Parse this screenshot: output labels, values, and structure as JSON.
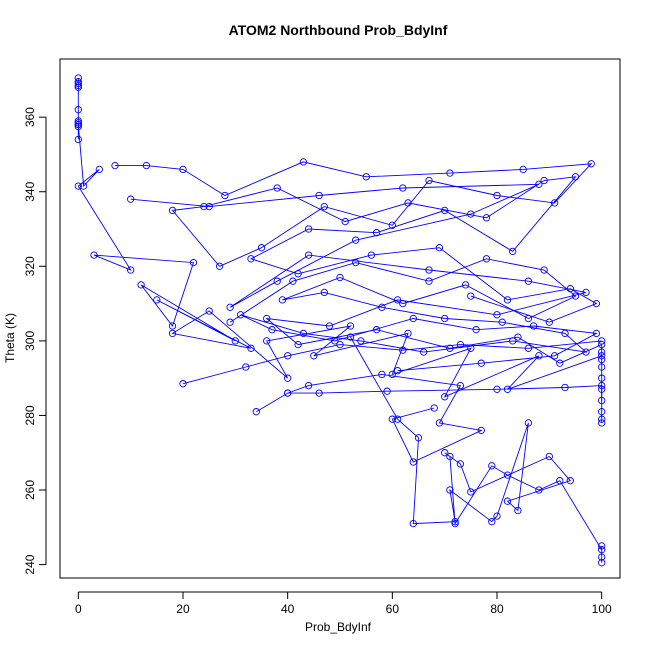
{
  "chart_data": {
    "type": "line",
    "title": "ATOM2 Northbound Prob_BdyInf",
    "xlabel": "Prob_BdyInf",
    "ylabel": "Theta (K)",
    "xlim": [
      -3.5,
      103.5
    ],
    "ylim": [
      236.4,
      375.6
    ],
    "x_ticks": [
      0,
      20,
      40,
      60,
      80,
      100
    ],
    "y_ticks": [
      240,
      260,
      280,
      300,
      320,
      340,
      360
    ],
    "grid": false,
    "legend": "none",
    "marker": "open-circle",
    "color": "#0000ff",
    "series": [
      {
        "x": [
          0,
          0,
          0,
          0,
          0,
          0,
          0,
          0,
          0,
          0,
          0
        ],
        "y": [
          370.5,
          369.5,
          369,
          368.5,
          368,
          362,
          359,
          358.5,
          358,
          357.5,
          354
        ]
      },
      {
        "x": [
          0,
          1,
          4,
          0,
          10,
          3,
          22,
          18,
          12,
          30,
          15,
          33,
          18,
          25,
          40,
          36,
          52,
          45,
          63,
          60,
          75,
          70,
          88,
          82,
          100
        ],
        "y": [
          358,
          341.5,
          346,
          341.5,
          319,
          323,
          321,
          304,
          315,
          300,
          311,
          298,
          302,
          308,
          290,
          300,
          304,
          296,
          302,
          291,
          298,
          285,
          296,
          287,
          296
        ]
      },
      {
        "x": [
          7,
          13,
          20,
          28,
          43,
          55,
          71,
          85,
          98,
          91,
          80,
          67,
          60,
          47,
          35,
          27,
          18,
          24,
          38,
          51,
          63,
          78,
          89,
          95,
          83,
          70,
          57,
          44,
          33,
          42,
          56,
          69,
          82,
          94,
          99,
          90,
          75
        ],
        "y": [
          347,
          347,
          346,
          339,
          348,
          344,
          345,
          346,
          347.5,
          337,
          339,
          343,
          331,
          336,
          325,
          320,
          335,
          336,
          341,
          332,
          337,
          333,
          343,
          344,
          324,
          335,
          329,
          330,
          322,
          318,
          323,
          325,
          311,
          314,
          310,
          305,
          312
        ]
      },
      {
        "x": [
          10,
          25,
          46,
          62,
          88,
          75,
          53,
          38,
          29,
          44,
          67,
          86,
          97,
          80,
          61,
          48,
          36,
          42,
          57,
          71,
          84,
          92,
          100,
          100,
          100,
          100,
          100,
          100,
          100
        ],
        "y": [
          338,
          336,
          339,
          341,
          342,
          334,
          327,
          316,
          309,
          323,
          319,
          316,
          313,
          307,
          311,
          304,
          306,
          299,
          303,
          298,
          301,
          294,
          299,
          297,
          295,
          293,
          290,
          287,
          284
        ]
      },
      {
        "x": [
          40,
          46,
          59,
          80,
          93,
          100,
          100,
          100,
          100
        ],
        "y": [
          286,
          286,
          286.5,
          287,
          287.5,
          288,
          281,
          279,
          278
        ]
      },
      {
        "x": [
          20,
          32,
          40,
          50,
          62,
          73,
          86,
          100
        ],
        "y": [
          288.5,
          293,
          296,
          299,
          297.5,
          299,
          298,
          300
        ]
      },
      {
        "x": [
          34,
          40,
          44,
          58,
          73,
          69,
          77,
          64,
          60,
          68
        ],
        "y": [
          281,
          286,
          288,
          291,
          288,
          278,
          276,
          267.5,
          279,
          282
        ]
      },
      {
        "x": [
          52,
          61,
          65,
          64,
          72,
          71,
          79,
          80,
          86,
          84,
          82,
          94,
          90,
          75,
          73,
          70,
          71,
          72,
          79,
          82,
          88,
          92,
          100,
          100,
          100,
          100
        ],
        "y": [
          301,
          279,
          274,
          251,
          251.5,
          260,
          251.5,
          253,
          278,
          254.5,
          257,
          262.5,
          269,
          259.5,
          267,
          270,
          269,
          251,
          266.5,
          264,
          260,
          262.5,
          244,
          245,
          242,
          240.5
        ]
      },
      {
        "x": [
          29,
          41,
          53,
          67,
          78,
          89,
          95,
          86,
          74,
          62,
          50,
          39,
          47,
          58,
          70,
          81,
          93,
          97,
          83,
          66,
          54,
          43,
          31,
          37,
          49,
          64,
          76,
          87,
          99,
          91,
          77,
          61
        ],
        "y": [
          305,
          316,
          321,
          316,
          322,
          319,
          312,
          306,
          315,
          310,
          317,
          311,
          313,
          309,
          306,
          305,
          302,
          297,
          300,
          297,
          300,
          302,
          307,
          303,
          300,
          306,
          303,
          304,
          302,
          296,
          294,
          292
        ]
      }
    ]
  }
}
